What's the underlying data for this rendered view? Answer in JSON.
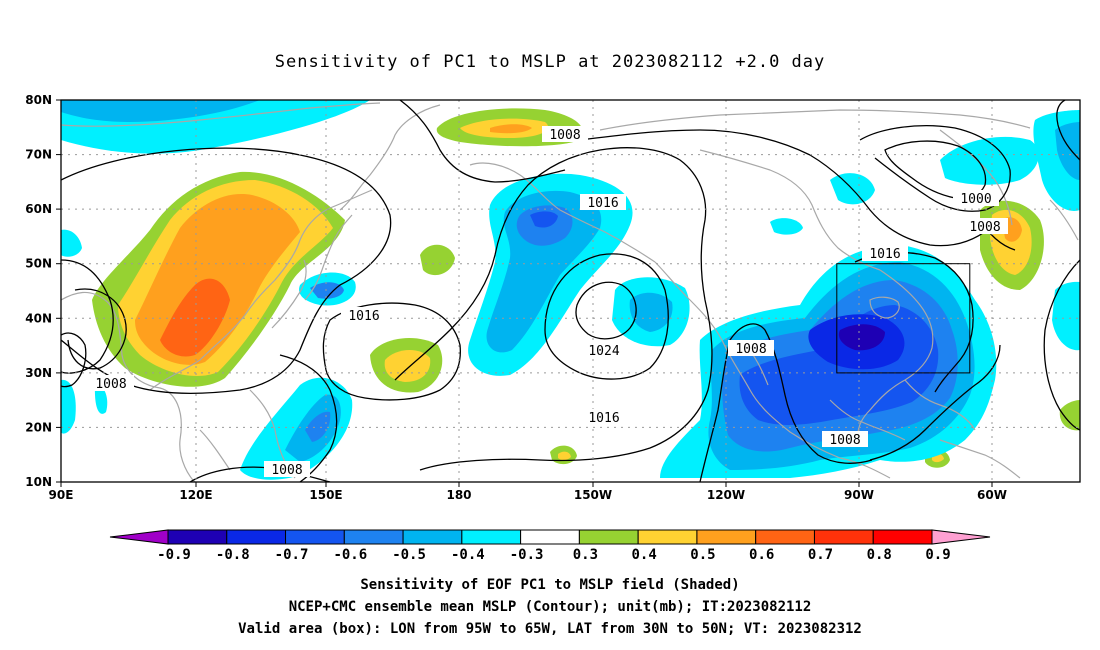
{
  "title": "Sensitivity of PC1 to MSLP at 2023082112 +2.0 day",
  "map": {
    "lon_labels": [
      "90E",
      "120E",
      "150E",
      "180",
      "150W",
      "120W",
      "90W",
      "60W"
    ],
    "lat_labels": [
      "80N",
      "70N",
      "60N",
      "50N",
      "40N",
      "30N",
      "20N",
      "10N"
    ],
    "valid_box": {
      "lon_west": "95W",
      "lon_east": "65W",
      "lat_south": "30N",
      "lat_north": "50N"
    }
  },
  "contour_labels": [
    "1008",
    "1016",
    "1016",
    "1016",
    "1024",
    "1016",
    "1008",
    "1008",
    "1008",
    "1008",
    "1000",
    "1008"
  ],
  "colorbar": {
    "ticks": [
      "-0.9",
      "-0.8",
      "-0.7",
      "-0.6",
      "-0.5",
      "-0.4",
      "-0.3",
      "0.3",
      "0.4",
      "0.5",
      "0.6",
      "0.7",
      "0.8",
      "0.9"
    ],
    "colors": [
      "#a000c8",
      "#1e00b4",
      "#0a28e6",
      "#1455f0",
      "#1e82f0",
      "#00b4f0",
      "#00f0ff",
      "#ffffff",
      "#96d232",
      "#ffd232",
      "#ffa01e",
      "#ff6414",
      "#ff320a",
      "#ff0000",
      "#ffa0d2"
    ]
  },
  "captions": [
    "Sensitivity of EOF PC1 to MSLP field (Shaded)",
    "NCEP+CMC ensemble mean MSLP (Contour); unit(mb); IT:2023082112",
    "Valid area (box): LON from 95W to 65W, LAT from 30N to 50N; VT: 2023082312"
  ]
}
